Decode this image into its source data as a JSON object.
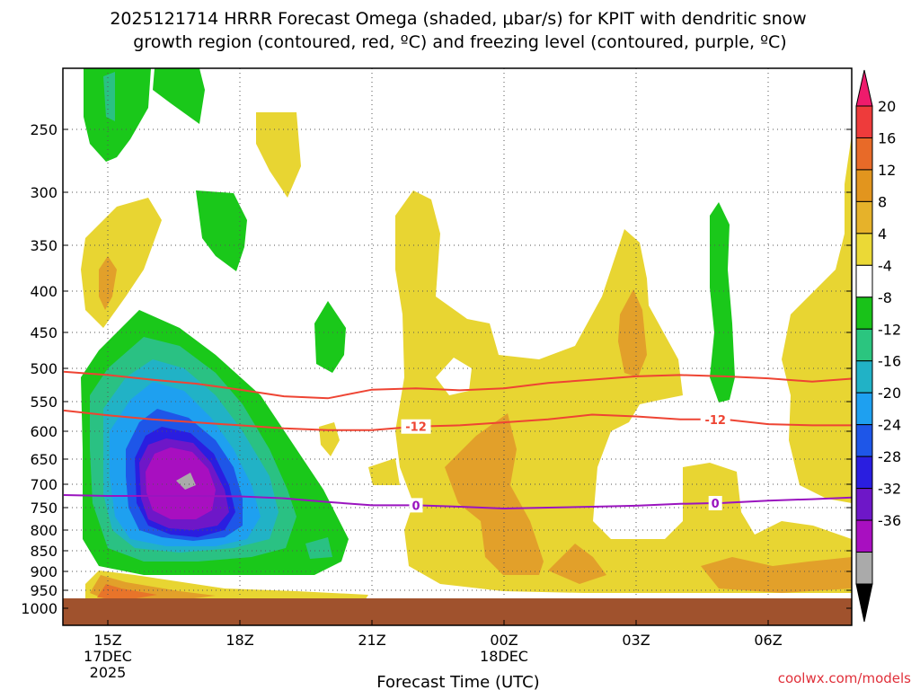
{
  "chart_data": {
    "type": "contour",
    "title_line1": "2025121714 HRRR Forecast Omega (shaded, μbar/s) for KPIT with dendritic snow",
    "title_line2": "growth region (contoured, red, ºC) and freezing level (contoured, purple, ºC)",
    "xlabel": "Forecast Time (UTC)",
    "ylabel": "",
    "credit": "coolwx.com/models",
    "x_ticks": [
      {
        "label": "15Z",
        "sub1": "17DEC",
        "sub2": "2025",
        "hour": 15
      },
      {
        "label": "18Z",
        "sub1": "",
        "sub2": "",
        "hour": 18
      },
      {
        "label": "21Z",
        "sub1": "",
        "sub2": "",
        "hour": 21
      },
      {
        "label": "00Z",
        "sub1": "18DEC",
        "sub2": "",
        "hour": 24
      },
      {
        "label": "03Z",
        "sub1": "",
        "sub2": "",
        "hour": 27
      },
      {
        "label": "06Z",
        "sub1": "",
        "sub2": "",
        "hour": 30
      }
    ],
    "xlim_hours": [
      14.0,
      32.0
    ],
    "y_ticks": [
      "250",
      "300",
      "350",
      "400",
      "450",
      "500",
      "550",
      "600",
      "650",
      "700",
      "750",
      "800",
      "850",
      "900",
      "950",
      "1000"
    ],
    "y_values": [
      250,
      300,
      350,
      400,
      450,
      500,
      550,
      600,
      650,
      700,
      750,
      800,
      850,
      900,
      950,
      1000
    ],
    "ylim": [
      200,
      1010
    ],
    "colorbar": {
      "levels": [
        "20",
        "16",
        "12",
        "8",
        "4",
        "-4",
        "-8",
        "-12",
        "-16",
        "-20",
        "-24",
        "-28",
        "-32",
        "-36"
      ],
      "colors": [
        "#ee1b6c",
        "#ee3b3b",
        "#e86a28",
        "#e2951e",
        "#e6b22a",
        "#ebd936",
        "#ffffff",
        "#19c219",
        "#2bc57f",
        "#21b2c6",
        "#1ea0f0",
        "#1e56e8",
        "#2a1ee0",
        "#6e17c8",
        "#a80fc0",
        "#aaaaaa",
        "#000000"
      ]
    },
    "contours": [
      {
        "name": "dgz-top",
        "color": "#ee4433",
        "label": "",
        "hours": [
          14,
          15,
          16,
          17,
          18,
          19,
          20,
          21,
          22,
          23,
          24,
          25,
          26,
          27,
          28,
          29,
          30,
          31,
          32
        ],
        "values": [
          505,
          510,
          517,
          523,
          532,
          542,
          545,
          532,
          530,
          533,
          530,
          522,
          517,
          512,
          510,
          512,
          515,
          520,
          515
        ]
      },
      {
        "name": "dgz-bottom",
        "color": "#ee4433",
        "label": "-12",
        "hours": [
          14,
          15,
          16,
          17,
          18,
          19,
          20,
          21,
          22,
          23,
          24,
          25,
          26,
          27,
          28,
          29,
          30,
          31,
          32
        ],
        "values": [
          565,
          573,
          580,
          585,
          590,
          595,
          598,
          598,
          592,
          590,
          585,
          580,
          572,
          575,
          580,
          580,
          588,
          590,
          590
        ]
      },
      {
        "name": "freezing-level",
        "color": "#9a14bf",
        "label": "0",
        "hours": [
          14,
          15,
          16,
          17,
          18,
          19,
          20,
          21,
          22,
          23,
          24,
          25,
          26,
          27,
          28,
          29,
          30,
          31,
          32
        ],
        "values": [
          723,
          725,
          725,
          725,
          726,
          730,
          738,
          745,
          745,
          748,
          752,
          750,
          748,
          746,
          742,
          740,
          735,
          732,
          728
        ]
      }
    ],
    "ground_color": "#a0522d"
  }
}
